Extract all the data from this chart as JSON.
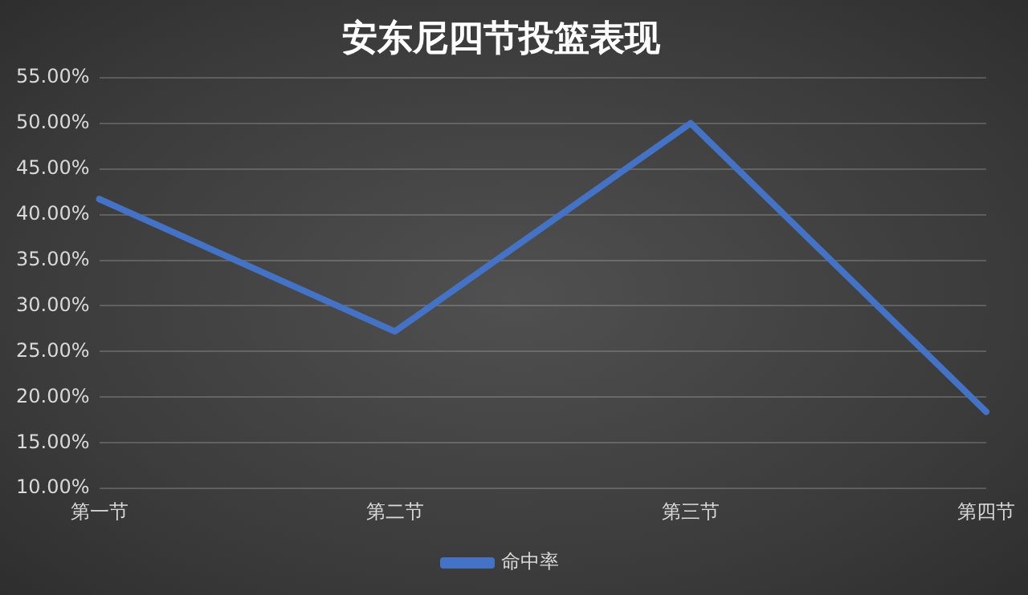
{
  "chart_data": {
    "type": "line",
    "title": "安东尼四节投篮表现",
    "categories": [
      "第一节",
      "第二节",
      "第三节",
      "第四节"
    ],
    "series": [
      {
        "name": "命中率",
        "color": "#4472c4",
        "values": [
          41.7,
          27.2,
          50,
          18.4
        ]
      }
    ],
    "ylim": [
      10,
      55
    ],
    "yticks": [
      {
        "value": 10,
        "label": "10.00%"
      },
      {
        "value": 15,
        "label": "15.00%"
      },
      {
        "value": 20,
        "label": "20.00%"
      },
      {
        "value": 25,
        "label": "25.00%"
      },
      {
        "value": 30,
        "label": "30.00%"
      },
      {
        "value": 35,
        "label": "35.00%"
      },
      {
        "value": 40,
        "label": "40.00%"
      },
      {
        "value": 45,
        "label": "45.00%"
      },
      {
        "value": 50,
        "label": "50.00%"
      },
      {
        "value": 55,
        "label": "55.00%"
      }
    ],
    "grid": "y",
    "legend": "bottom",
    "marker": "none",
    "line_style": "solid"
  }
}
